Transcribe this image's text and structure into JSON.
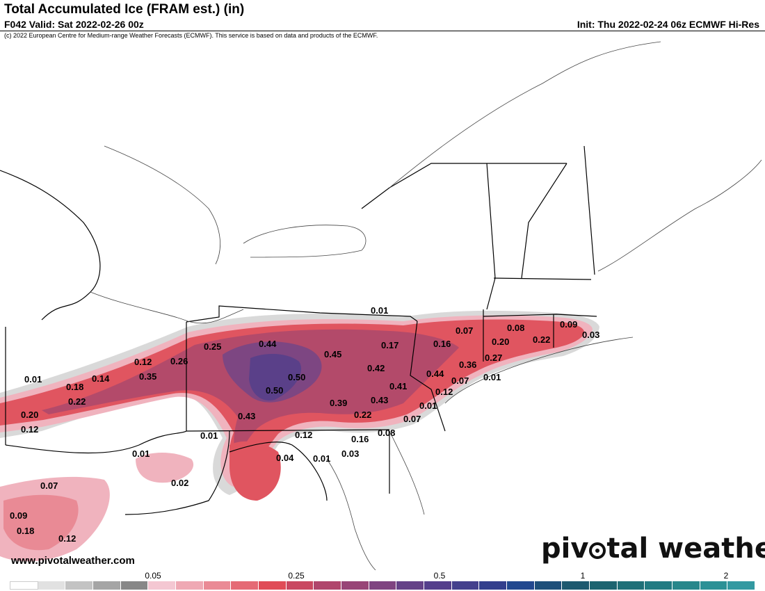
{
  "header": {
    "title": "Total Accumulated Ice (FRAM est.) (in)",
    "valid": "F042 Valid: Sat 2022-02-26 00z",
    "init": "Init: Thu 2022-02-24 06z ECMWF Hi-Res",
    "copyright": "(c) 2022 European Centre for Medium-range Weather Forecasts (ECMWF). This service is based on data and products of the ECMWF."
  },
  "footer": {
    "website": "www.pivotalweather.com",
    "logo_left": "piv",
    "logo_right": "tal weather"
  },
  "colorbar": {
    "colors": [
      "#ffffff",
      "#e1e1e1",
      "#c3c3c3",
      "#a5a5a5",
      "#878787",
      "#f4c7d2",
      "#efa9b4",
      "#ea8a95",
      "#e56a75",
      "#e04c57",
      "#c94861",
      "#b0466c",
      "#984577",
      "#7f4481",
      "#654288",
      "#553f8c",
      "#44408d",
      "#333f8d",
      "#22488f",
      "#1e4f7a",
      "#1d596f",
      "#1c6470",
      "#1f7078",
      "#227b82",
      "#28878b",
      "#2c9196",
      "#3399a1"
    ],
    "ticks": [
      "0.05",
      "0.25",
      "0.5",
      "1",
      "2"
    ]
  },
  "map": {
    "values": [
      {
        "text": "0.01"
      },
      {
        "text": "0.25"
      },
      {
        "text": "0.44"
      },
      {
        "text": "0.45"
      },
      {
        "text": "0.17"
      },
      {
        "text": "0.16"
      },
      {
        "text": "0.07"
      },
      {
        "text": "0.08"
      },
      {
        "text": "0.20"
      },
      {
        "text": "0.22"
      },
      {
        "text": "0.09"
      },
      {
        "text": "0.03"
      },
      {
        "text": "0.12"
      },
      {
        "text": "0.26"
      },
      {
        "text": "0.42"
      },
      {
        "text": "0.36"
      },
      {
        "text": "0.27"
      },
      {
        "text": "0.01"
      },
      {
        "text": "0.18"
      },
      {
        "text": "0.14"
      },
      {
        "text": "0.35"
      },
      {
        "text": "0.50"
      },
      {
        "text": "0.44"
      },
      {
        "text": "0.07"
      },
      {
        "text": "0.01"
      },
      {
        "text": "0.22"
      },
      {
        "text": "0.50"
      },
      {
        "text": "0.41"
      },
      {
        "text": "0.12"
      },
      {
        "text": "0.39"
      },
      {
        "text": "0.43"
      },
      {
        "text": "0.01"
      },
      {
        "text": "0.20"
      },
      {
        "text": "0.43"
      },
      {
        "text": "0.22"
      },
      {
        "text": "0.07"
      },
      {
        "text": "0.12"
      },
      {
        "text": "0.01"
      },
      {
        "text": "0.12"
      },
      {
        "text": "0.08"
      },
      {
        "text": "0.16"
      },
      {
        "text": "0.01"
      },
      {
        "text": "0.04"
      },
      {
        "text": "0.01"
      },
      {
        "text": "0.03"
      },
      {
        "text": "0.02"
      },
      {
        "text": "0.07"
      },
      {
        "text": "0.09"
      },
      {
        "text": "0.18"
      },
      {
        "text": "0.12"
      }
    ]
  }
}
